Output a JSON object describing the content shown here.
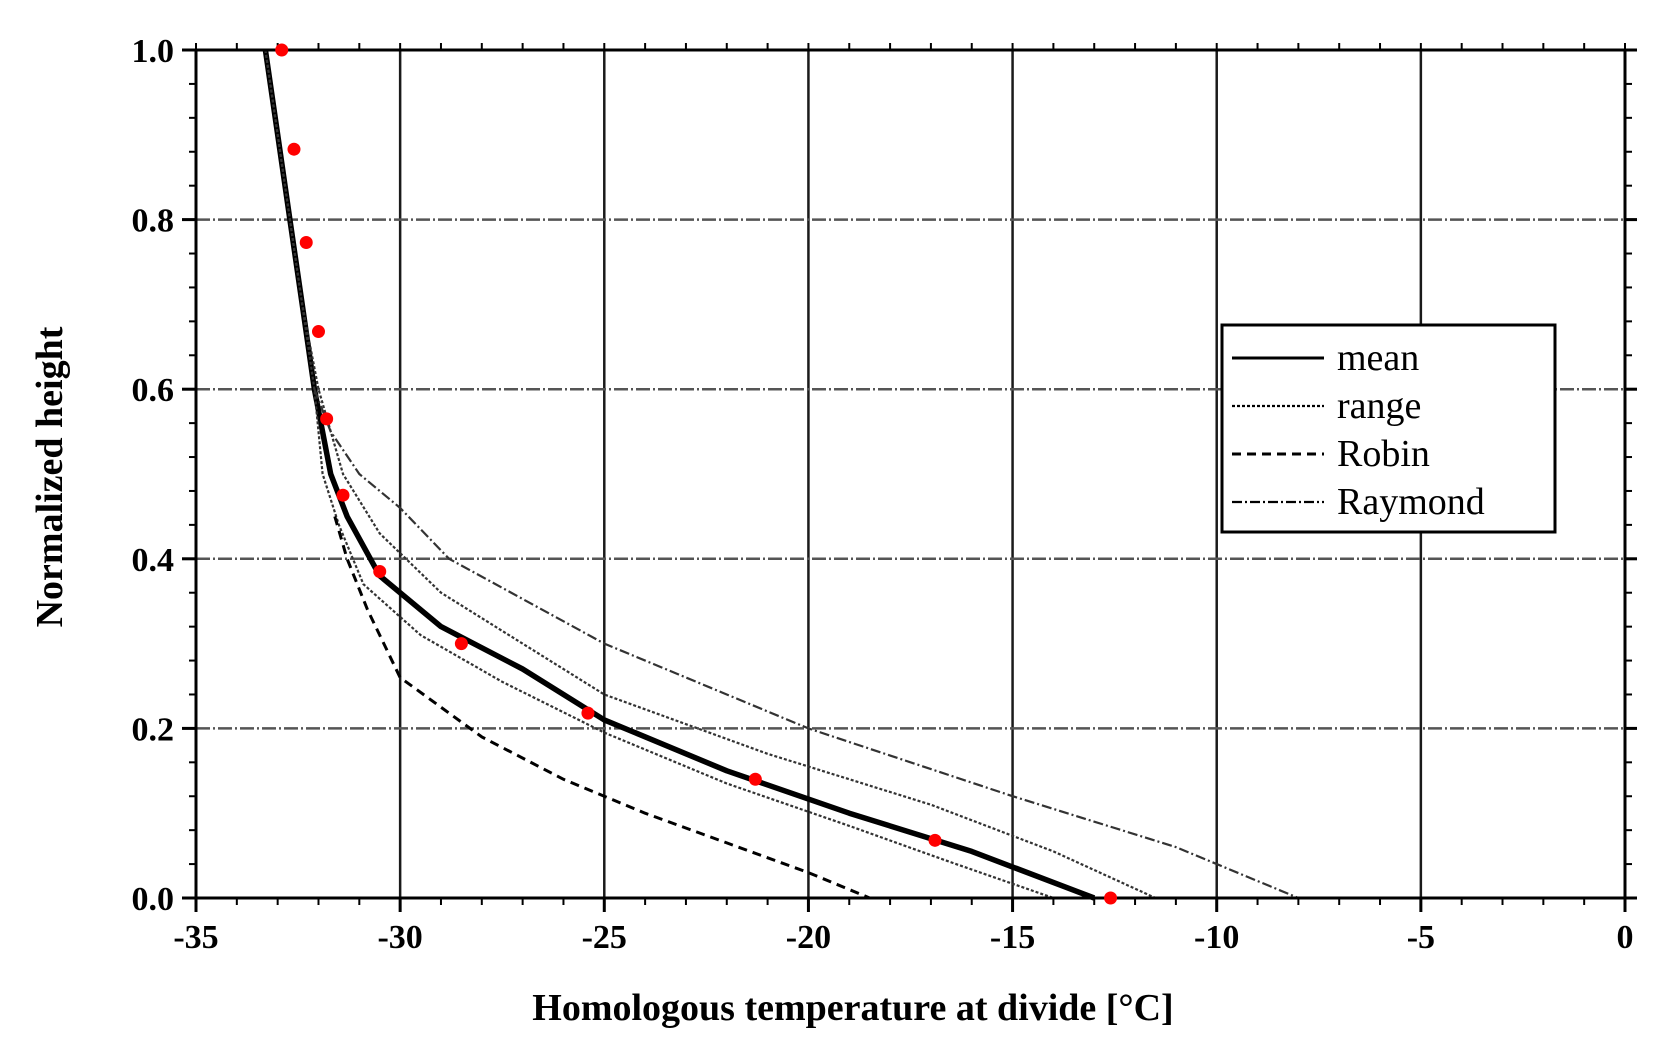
{
  "chart_data": {
    "type": "line",
    "title": "",
    "xlabel": "Homologous temperature at divide   [°C]",
    "ylabel": "Normalized height",
    "xlim": [
      -35,
      0
    ],
    "ylim": [
      0,
      1
    ],
    "x_ticks": [
      -35,
      -30,
      -25,
      -20,
      -15,
      -10,
      -5,
      0
    ],
    "x_tick_labels": [
      "-35",
      "-30",
      "-25",
      "-20",
      "-15",
      "-10",
      "-5",
      "0"
    ],
    "y_ticks": [
      0,
      0.2,
      0.4,
      0.6,
      0.8,
      1.0
    ],
    "y_tick_labels": [
      "0.0",
      "0.2",
      "0.4",
      "0.6",
      "0.8",
      "1.0"
    ],
    "grid": true,
    "legend_position": "right-middle",
    "legend": [
      "mean",
      "range",
      "Robin",
      "Raymond"
    ],
    "series": [
      {
        "name": "mean",
        "style": "solid-thick",
        "color": "#000000",
        "points": [
          [
            -33.3,
            1.0
          ],
          [
            -33.0,
            0.9
          ],
          [
            -32.7,
            0.8
          ],
          [
            -32.4,
            0.7
          ],
          [
            -32.1,
            0.6
          ],
          [
            -31.7,
            0.5
          ],
          [
            -31.3,
            0.45
          ],
          [
            -30.5,
            0.38
          ],
          [
            -29.0,
            0.32
          ],
          [
            -27.0,
            0.27
          ],
          [
            -25.0,
            0.21
          ],
          [
            -22.0,
            0.15
          ],
          [
            -19.0,
            0.1
          ],
          [
            -16.0,
            0.055
          ],
          [
            -13.0,
            0.0
          ]
        ]
      },
      {
        "name": "range",
        "style": "dotted-thin",
        "color": "#333333",
        "lower_points": [
          [
            -33.3,
            1.0
          ],
          [
            -33.0,
            0.9
          ],
          [
            -32.7,
            0.8
          ],
          [
            -32.4,
            0.7
          ],
          [
            -32.1,
            0.6
          ],
          [
            -31.9,
            0.5
          ],
          [
            -31.5,
            0.44
          ],
          [
            -30.9,
            0.37
          ],
          [
            -29.5,
            0.31
          ],
          [
            -27.5,
            0.255
          ],
          [
            -25.0,
            0.195
          ],
          [
            -22.0,
            0.135
          ],
          [
            -19.0,
            0.085
          ],
          [
            -16.5,
            0.042
          ],
          [
            -14.0,
            0.0
          ]
        ],
        "upper_points": [
          [
            -33.3,
            1.0
          ],
          [
            -33.0,
            0.9
          ],
          [
            -32.7,
            0.8
          ],
          [
            -32.4,
            0.7
          ],
          [
            -32.0,
            0.6
          ],
          [
            -31.4,
            0.5
          ],
          [
            -30.5,
            0.43
          ],
          [
            -29.0,
            0.36
          ],
          [
            -27.0,
            0.3
          ],
          [
            -25.0,
            0.24
          ],
          [
            -21.0,
            0.17
          ],
          [
            -17.0,
            0.11
          ],
          [
            -14.0,
            0.055
          ],
          [
            -11.5,
            0.0
          ]
        ]
      },
      {
        "name": "Robin",
        "style": "dashed",
        "color": "#000000",
        "points": [
          [
            -31.6,
            0.45
          ],
          [
            -31.3,
            0.4
          ],
          [
            -30.8,
            0.34
          ],
          [
            -30.0,
            0.26
          ],
          [
            -28.0,
            0.19
          ],
          [
            -26.0,
            0.14
          ],
          [
            -24.0,
            0.1
          ],
          [
            -22.0,
            0.065
          ],
          [
            -20.0,
            0.03
          ],
          [
            -18.5,
            0.0
          ]
        ]
      },
      {
        "name": "Raymond",
        "style": "dash-dot-thin",
        "color": "#333333",
        "points": [
          [
            -32.1,
            0.6
          ],
          [
            -31.7,
            0.55
          ],
          [
            -31.0,
            0.5
          ],
          [
            -30.0,
            0.46
          ],
          [
            -28.8,
            0.4
          ],
          [
            -25.0,
            0.3
          ],
          [
            -20.0,
            0.2
          ],
          [
            -15.0,
            0.12
          ],
          [
            -11.0,
            0.06
          ],
          [
            -8.0,
            0.0
          ]
        ]
      },
      {
        "name": "",
        "style": "markers",
        "color": "#ff0000",
        "points": [
          [
            -32.9,
            1.0
          ],
          [
            -32.6,
            0.883
          ],
          [
            -32.3,
            0.773
          ],
          [
            -32.0,
            0.668
          ],
          [
            -31.8,
            0.565
          ],
          [
            -31.4,
            0.475
          ],
          [
            -30.5,
            0.385
          ],
          [
            -28.5,
            0.3
          ],
          [
            -25.4,
            0.218
          ],
          [
            -21.3,
            0.14
          ],
          [
            -16.9,
            0.068
          ],
          [
            -12.6,
            0.0
          ]
        ]
      }
    ]
  }
}
